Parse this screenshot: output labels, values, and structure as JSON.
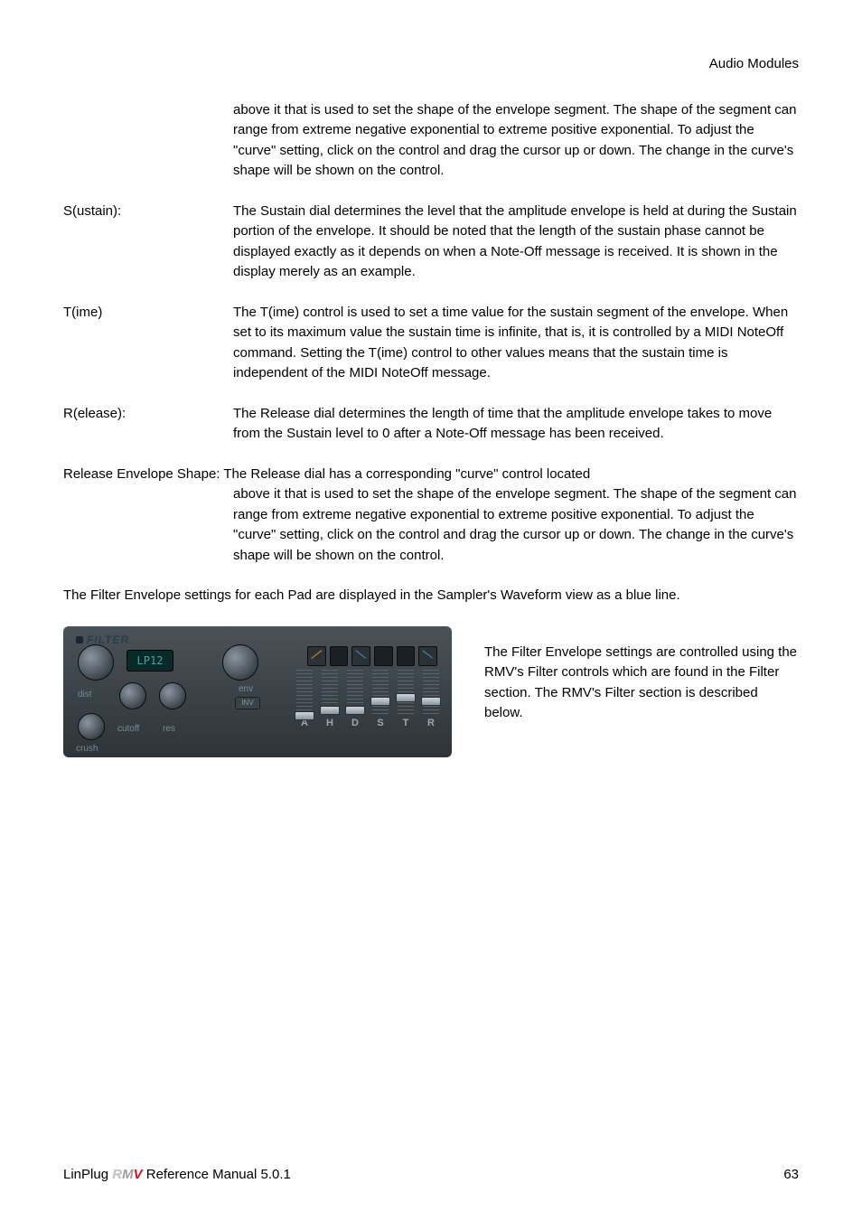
{
  "header": {
    "section": "Audio Modules"
  },
  "continuation1": "above it that is used to set the shape of the envelope segment. The shape of the segment can range from extreme negative exponential to extreme positive exponential. To adjust the \"curve\" setting, click on the control and drag the cursor up or down. The change in the curve's shape will be shown on the control.",
  "defs": {
    "sustain": {
      "term": "S(ustain):",
      "body": "The Sustain dial determines the level that the amplitude envelope is held at during the Sustain portion of the envelope. It should be noted that the length of the sustain phase cannot be displayed exactly as it depends on when a Note-Off message is received. It is shown in the display merely as an example."
    },
    "time": {
      "term": "T(ime)",
      "body": "The T(ime) control is used to set a time value for the sustain segment of the envelope. When set to its maximum value the sustain time is infinite, that is, it is controlled by a MIDI NoteOff command. Setting the T(ime) control to other values means that the sustain time is independent of the MIDI NoteOff message."
    },
    "release": {
      "term": "R(elease):",
      "body": "The Release dial determines the length of time that the amplitude envelope takes to move from the Sustain level to 0 after a Note-Off message has been received."
    }
  },
  "releaseShape": {
    "lead": "Release Envelope Shape:   The Release dial has a corresponding \"curve\" control located",
    "rest": "above it that is used to set the shape of the envelope segment. The shape of the segment can range from extreme negative exponential to extreme positive exponential. To adjust the \"curve\" setting, click on the control and drag the cursor up or down. The change in the curve's shape will be shown on the control."
  },
  "para_waveform": "The Filter Envelope settings for each Pad are displayed in the Sampler's Waveform view as a blue line.",
  "filterPanel": {
    "title": "FILTER",
    "lcd": "LP12",
    "labels": {
      "dist": "dist",
      "env": "env",
      "inv": "INV",
      "cutoff": "cutoff",
      "res": "res",
      "crush": "crush"
    },
    "letters": [
      "A",
      "H",
      "D",
      "S",
      "T",
      "R"
    ],
    "slider_positions": [
      46,
      40,
      40,
      30,
      26,
      30
    ],
    "colors": {
      "panel_bg_top": "#4a5258",
      "panel_bg_bottom": "#2e3438",
      "lcd_bg": "#0a2a2a",
      "lcd_text": "#4aa0a8",
      "label": "#7a8892",
      "curve_orange": "#c27830",
      "curve_blue": "#4a78a8"
    }
  },
  "filterText": "The Filter Envelope settings are controlled using the RMV's Filter controls which are found in the Filter section. The RMV's Filter section is described below.",
  "footer": {
    "left_prefix": "LinPlug ",
    "logo_r": "R",
    "logo_m": "M",
    "logo_v": "V",
    "left_suffix": "  Reference Manual 5.0.1",
    "page": "63"
  }
}
